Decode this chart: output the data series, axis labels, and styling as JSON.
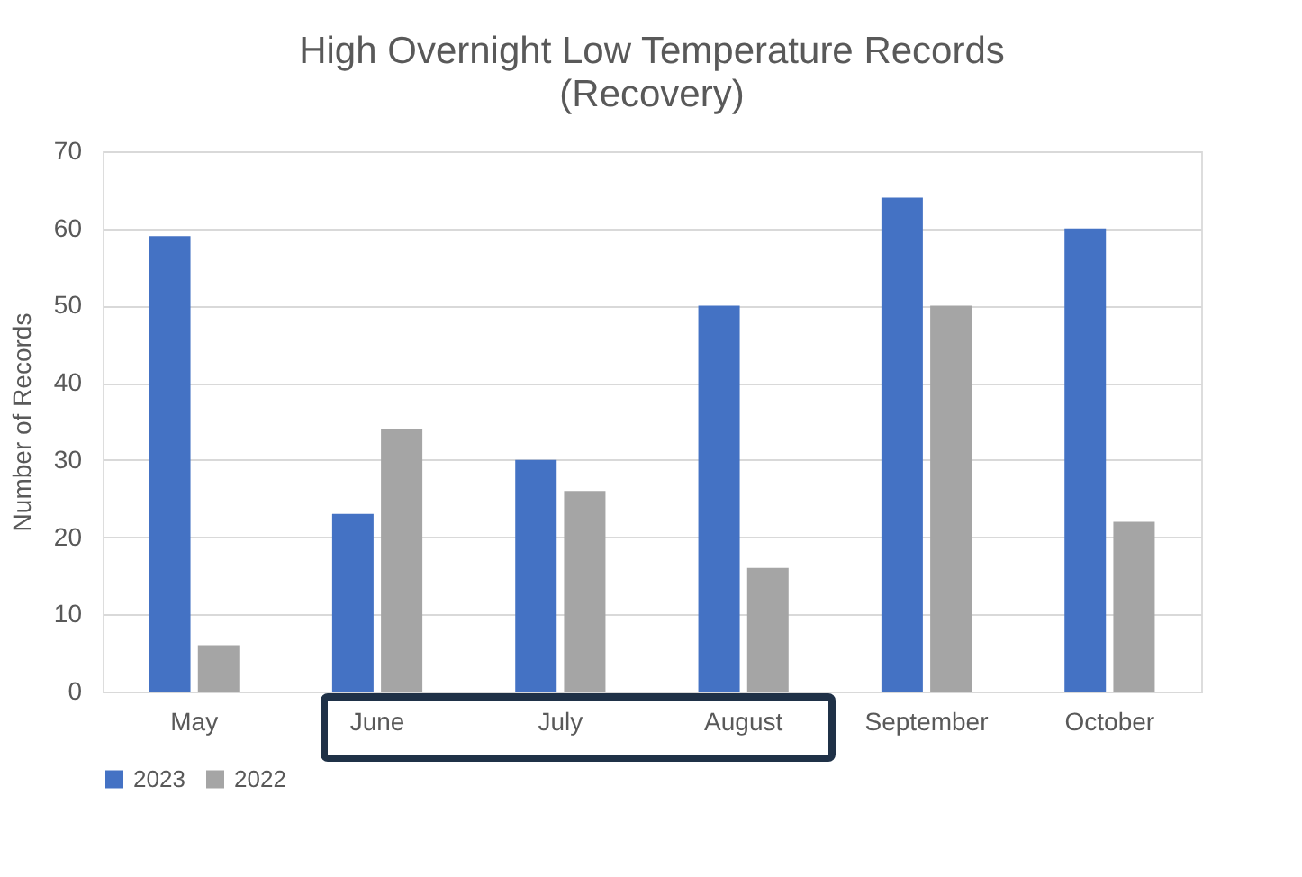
{
  "chart_data": {
    "type": "bar",
    "title": "High Overnight Low Temperature Records",
    "subtitle": "(Recovery)",
    "ylabel": "Number of Records",
    "categories": [
      "May",
      "June",
      "July",
      "August",
      "September",
      "October"
    ],
    "series": [
      {
        "name": "2023",
        "color": "#4472c4",
        "values": [
          59,
          23,
          30,
          50,
          64,
          60
        ]
      },
      {
        "name": "2022",
        "color": "#a5a5a5",
        "values": [
          6,
          34,
          26,
          16,
          50,
          22
        ]
      }
    ],
    "ylim": [
      0,
      70
    ],
    "yticks": [
      0,
      10,
      20,
      30,
      40,
      50,
      60,
      70
    ],
    "grid": "y",
    "legend": "bottom"
  }
}
